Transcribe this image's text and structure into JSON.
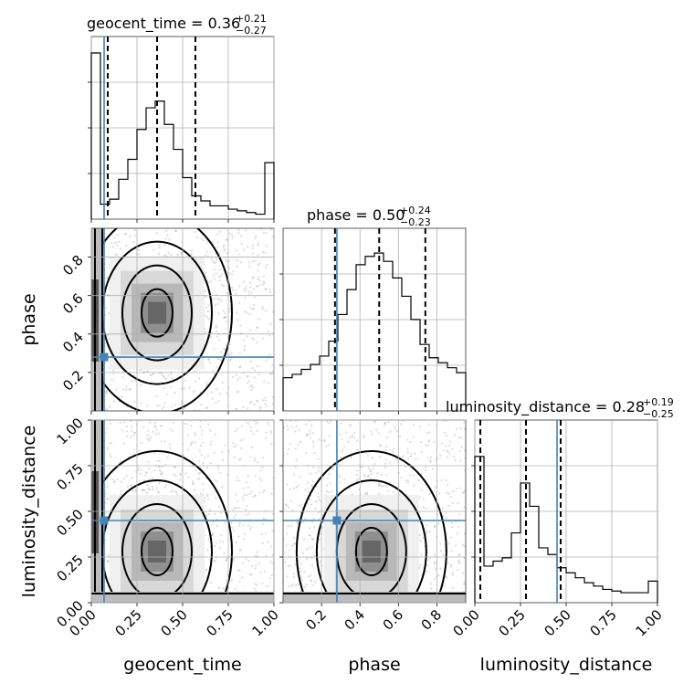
{
  "chart_data": {
    "type": "corner",
    "parameters": [
      {
        "name": "geocent_time",
        "label": "geocent_time",
        "range": [
          0,
          1
        ],
        "ticks": [
          0,
          0.25,
          0.5,
          0.75,
          1
        ],
        "tick_labels": [
          "0.00",
          "0.25",
          "0.50",
          "0.75",
          "1.00"
        ],
        "truth": 0.07,
        "quantiles": [
          0.09,
          0.36,
          0.57
        ],
        "title": {
          "prefix": "geocent_time = 0.36",
          "plus": "+0.21",
          "minus": "−0.27"
        },
        "hist": [
          1.0,
          0.09,
          0.12,
          0.24,
          0.36,
          0.54,
          0.67,
          0.71,
          0.57,
          0.42,
          0.25,
          0.14,
          0.11,
          0.08,
          0.08,
          0.06,
          0.05,
          0.04,
          0.03,
          0.34
        ]
      },
      {
        "name": "phase",
        "label": "phase",
        "range": [
          0,
          0.95
        ],
        "ticks": [
          0.2,
          0.4,
          0.6,
          0.8
        ],
        "tick_labels": [
          "0.2",
          "0.4",
          "0.6",
          "0.8"
        ],
        "truth": 0.28,
        "quantiles": [
          0.27,
          0.5,
          0.74
        ],
        "title": {
          "prefix": "phase = 0.50",
          "plus": "+0.24",
          "minus": "−0.23"
        },
        "hist": [
          0.2,
          0.22,
          0.25,
          0.28,
          0.33,
          0.42,
          0.58,
          0.73,
          0.88,
          0.93,
          0.95,
          0.9,
          0.8,
          0.69,
          0.55,
          0.4,
          0.32,
          0.29,
          0.26,
          0.23
        ]
      },
      {
        "name": "luminosity_distance",
        "label": "luminosity_distance",
        "range": [
          0,
          1
        ],
        "ticks": [
          0,
          0.25,
          0.5,
          0.75,
          1
        ],
        "tick_labels": [
          "0.00",
          "0.25",
          "0.50",
          "0.75",
          "1.00"
        ],
        "truth": 0.45,
        "quantiles": [
          0.03,
          0.28,
          0.47
        ],
        "title": {
          "prefix": "luminosity_distance = 0.28",
          "plus": "+0.19",
          "minus": "−0.25"
        },
        "hist": [
          0.88,
          0.22,
          0.25,
          0.27,
          0.42,
          0.72,
          0.58,
          0.33,
          0.29,
          0.21,
          0.18,
          0.15,
          0.12,
          0.1,
          0.08,
          0.07,
          0.06,
          0.06,
          0.06,
          0.13
        ]
      }
    ],
    "pairs": [
      {
        "x": "geocent_time",
        "y": "phase",
        "peak": [
          0.36,
          0.51
        ]
      },
      {
        "x": "geocent_time",
        "y": "luminosity_distance",
        "peak": [
          0.36,
          0.28
        ]
      },
      {
        "x": "phase",
        "y": "luminosity_distance",
        "peak": [
          0.46,
          0.28
        ]
      }
    ],
    "grid": true,
    "colors": {
      "truth": "#4682b4",
      "hist": "#000000",
      "contour": "#000000",
      "scatter": "#9a9a9a"
    }
  }
}
